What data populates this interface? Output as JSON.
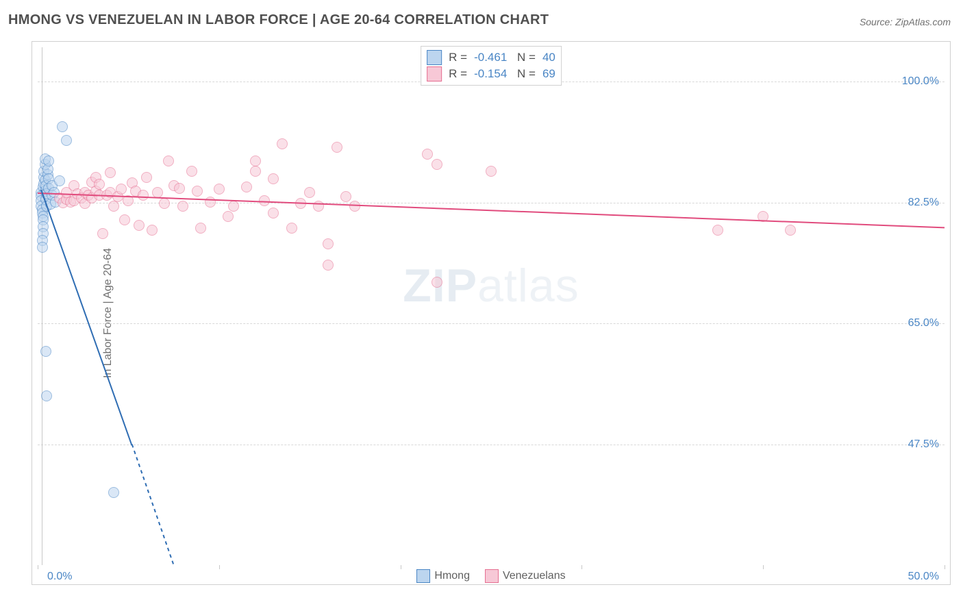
{
  "title": "HMONG VS VENEZUELAN IN LABOR FORCE | AGE 20-64 CORRELATION CHART",
  "source": "Source: ZipAtlas.com",
  "watermark_a": "ZIP",
  "watermark_b": "atlas",
  "chart": {
    "type": "scatter",
    "xlim": [
      0,
      50
    ],
    "ylim": [
      30,
      105
    ],
    "y_ticks": [
      47.5,
      65.0,
      82.5,
      100.0
    ],
    "y_tick_labels": [
      "47.5%",
      "65.0%",
      "82.5%",
      "100.0%"
    ],
    "x_tick_positions": [
      0,
      10,
      20,
      30,
      40,
      50
    ],
    "x_left_label": "0.0%",
    "x_right_label": "50.0%",
    "y_axis_label": "In Labor Force | Age 20-64",
    "grid_color": "#d8d8d8",
    "axis_color": "#c8c8c8",
    "background_color": "#ffffff",
    "marker_radius": 8,
    "marker_opacity": 0.55,
    "series": {
      "hmong": {
        "label": "Hmong",
        "fill": "#bcd5ef",
        "stroke": "#4a86c5",
        "line_color": "#2f6db3",
        "R": "-0.461",
        "N": "40",
        "trend": {
          "x1": 0.2,
          "y1": 84.5,
          "x2": 5.2,
          "y2": 47.5
        },
        "trend_dash": {
          "x1": 5.2,
          "y1": 47.5,
          "x2": 7.5,
          "y2": 30.0
        },
        "points": [
          [
            0.2,
            84.0
          ],
          [
            0.2,
            83.5
          ],
          [
            0.2,
            82.8
          ],
          [
            0.2,
            82.0
          ],
          [
            0.25,
            81.5
          ],
          [
            0.25,
            81.0
          ],
          [
            0.3,
            80.5
          ],
          [
            0.3,
            80.0
          ],
          [
            0.3,
            84.8
          ],
          [
            0.35,
            85.3
          ],
          [
            0.35,
            86.2
          ],
          [
            0.35,
            87.0
          ],
          [
            0.4,
            88.0
          ],
          [
            0.4,
            88.8
          ],
          [
            0.3,
            79.0
          ],
          [
            0.3,
            78.0
          ],
          [
            0.25,
            77.0
          ],
          [
            0.25,
            76.0
          ],
          [
            0.4,
            85.8
          ],
          [
            0.4,
            84.2
          ],
          [
            0.45,
            85.0
          ],
          [
            0.45,
            83.0
          ],
          [
            0.5,
            82.0
          ],
          [
            0.5,
            83.8
          ],
          [
            0.55,
            86.5
          ],
          [
            0.55,
            87.3
          ],
          [
            0.6,
            88.5
          ],
          [
            0.6,
            86.0
          ],
          [
            0.6,
            84.6
          ],
          [
            0.7,
            82.3
          ],
          [
            0.8,
            85.0
          ],
          [
            0.8,
            83.6
          ],
          [
            0.9,
            84.0
          ],
          [
            1.0,
            82.6
          ],
          [
            1.2,
            85.7
          ],
          [
            1.35,
            93.5
          ],
          [
            1.6,
            91.5
          ],
          [
            0.45,
            61.0
          ],
          [
            0.5,
            54.5
          ],
          [
            4.2,
            40.5
          ]
        ]
      },
      "venezuelans": {
        "label": "Venezuelans",
        "fill": "#f7c8d6",
        "stroke": "#e66f92",
        "line_color": "#e14b7d",
        "R": "-0.154",
        "N": "69",
        "trend": {
          "x1": 0.0,
          "y1": 84.0,
          "x2": 50.0,
          "y2": 79.0
        },
        "points": [
          [
            1.2,
            83.2
          ],
          [
            1.4,
            82.5
          ],
          [
            1.6,
            83.0
          ],
          [
            1.6,
            84.0
          ],
          [
            1.8,
            82.6
          ],
          [
            2.0,
            82.8
          ],
          [
            2.0,
            85.0
          ],
          [
            2.2,
            83.8
          ],
          [
            2.4,
            83.2
          ],
          [
            2.6,
            84.0
          ],
          [
            2.6,
            82.4
          ],
          [
            2.8,
            83.6
          ],
          [
            3.0,
            83.2
          ],
          [
            3.0,
            85.5
          ],
          [
            3.2,
            84.2
          ],
          [
            3.2,
            86.2
          ],
          [
            3.4,
            83.6
          ],
          [
            3.4,
            85.2
          ],
          [
            3.6,
            78.0
          ],
          [
            3.8,
            83.6
          ],
          [
            4.0,
            84.0
          ],
          [
            4.0,
            86.8
          ],
          [
            4.2,
            82.0
          ],
          [
            4.4,
            83.4
          ],
          [
            4.6,
            84.5
          ],
          [
            4.8,
            80.0
          ],
          [
            5.0,
            82.8
          ],
          [
            5.2,
            85.4
          ],
          [
            5.4,
            84.2
          ],
          [
            5.6,
            79.2
          ],
          [
            5.8,
            83.6
          ],
          [
            6.0,
            86.2
          ],
          [
            6.3,
            78.5
          ],
          [
            6.6,
            84.0
          ],
          [
            7.0,
            82.4
          ],
          [
            7.2,
            88.5
          ],
          [
            7.5,
            85.0
          ],
          [
            7.8,
            84.6
          ],
          [
            8.0,
            82.0
          ],
          [
            8.5,
            87.0
          ],
          [
            8.8,
            84.2
          ],
          [
            9.0,
            78.8
          ],
          [
            9.5,
            82.6
          ],
          [
            10.0,
            84.5
          ],
          [
            10.5,
            80.5
          ],
          [
            10.8,
            82.0
          ],
          [
            11.5,
            84.8
          ],
          [
            12.0,
            87.0
          ],
          [
            12.0,
            88.5
          ],
          [
            12.5,
            82.8
          ],
          [
            13.0,
            81.0
          ],
          [
            13.0,
            86.0
          ],
          [
            13.5,
            91.0
          ],
          [
            14.0,
            78.8
          ],
          [
            14.5,
            82.4
          ],
          [
            15.0,
            84.0
          ],
          [
            15.5,
            82.0
          ],
          [
            16.0,
            76.5
          ],
          [
            16.0,
            73.5
          ],
          [
            16.5,
            90.5
          ],
          [
            17.0,
            83.4
          ],
          [
            17.5,
            82.0
          ],
          [
            21.5,
            89.5
          ],
          [
            22.0,
            88.0
          ],
          [
            22.0,
            71.0
          ],
          [
            25.0,
            87.0
          ],
          [
            37.5,
            78.5
          ],
          [
            40.0,
            80.5
          ],
          [
            41.5,
            78.5
          ]
        ]
      }
    },
    "legend": {
      "bottom_items": [
        "hmong",
        "venezuelans"
      ]
    }
  }
}
